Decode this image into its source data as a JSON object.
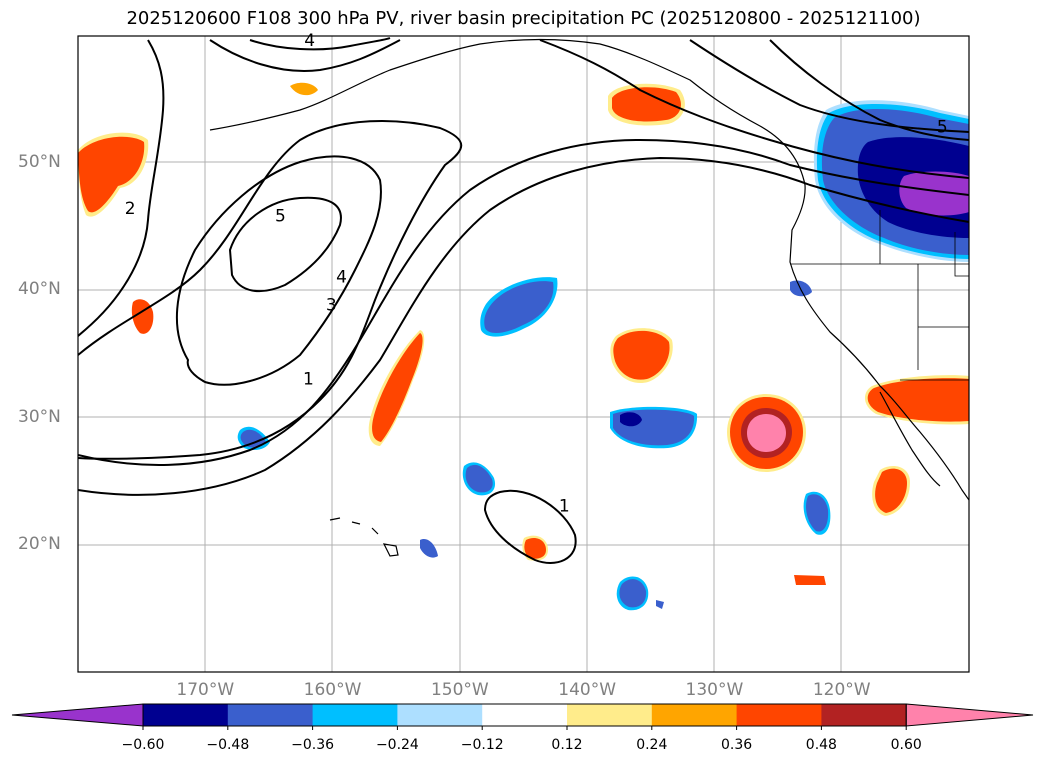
{
  "title": "2025120600 F108 300 hPa PV, river basin precipitation PC (2025120800 - 2025121100)",
  "lon_labels": [
    {
      "text": "170°W",
      "lon": -170
    },
    {
      "text": "160°W",
      "lon": -160
    },
    {
      "text": "150°W",
      "lon": -150
    },
    {
      "text": "140°W",
      "lon": -140
    },
    {
      "text": "130°W",
      "lon": -130
    },
    {
      "text": "120°W",
      "lon": -120
    }
  ],
  "lat_labels": [
    {
      "text": "50°N",
      "lat": 50
    },
    {
      "text": "40°N",
      "lat": 40
    },
    {
      "text": "30°N",
      "lat": 30
    },
    {
      "text": "20°N",
      "lat": 20
    }
  ],
  "contour_labels": [
    {
      "text": "1",
      "lon": -161.9,
      "lat": 33.0
    },
    {
      "text": "2",
      "lon": -175.9,
      "lat": 46.4
    },
    {
      "text": "3",
      "lon": -160.1,
      "lat": 38.8
    },
    {
      "text": "4",
      "lon": -159.3,
      "lat": 41.0
    },
    {
      "text": "5",
      "lon": -164.1,
      "lat": 45.8
    },
    {
      "text": "1",
      "lon": -141.8,
      "lat": 23.0
    },
    {
      "text": "5",
      "lon": -112.1,
      "lat": 52.8
    },
    {
      "text": "4",
      "lon": -161.8,
      "lat": 59.6
    }
  ],
  "colorbar": {
    "ticks": [
      "−0.60",
      "−0.48",
      "−0.36",
      "−0.24",
      "−0.12",
      "0.12",
      "0.24",
      "0.36",
      "0.48",
      "0.60"
    ],
    "colors": [
      "#9933cc",
      "#000090",
      "#3a5fcd",
      "#00bfff",
      "#addfff",
      "#ffffff",
      "#ffec8b",
      "#ffa500",
      "#ff4500",
      "#b22222",
      "#ff82ab"
    ]
  }
}
